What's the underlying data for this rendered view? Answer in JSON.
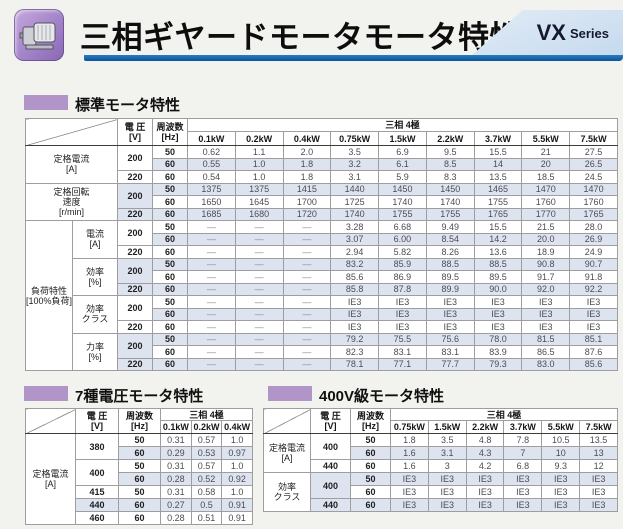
{
  "header": {
    "title": "三相ギヤードモータモータ特性",
    "series": {
      "main": "VX",
      "sub": "Series"
    }
  },
  "colors": {
    "accent_purple": "#b295c8",
    "icon_purple": "#a283c9",
    "underline_blue": "#0b539a",
    "series_badge_bg": "#cfe2f2",
    "alt_row_blue": "#dde4f0",
    "table_border": "#9e9e9e"
  },
  "common_headers": {
    "voltage": "電 圧",
    "voltage_unit": "[V]",
    "frequency": "周波数",
    "frequency_unit": "[Hz]",
    "phase": "三相 4極",
    "dash": "—"
  },
  "standard_section": {
    "title": "標準モータ特性",
    "table": {
      "power_columns": [
        "0.1kW",
        "0.2kW",
        "0.4kW",
        "0.75kW",
        "1.5kW",
        "2.2kW",
        "3.7kW",
        "5.5kW",
        "7.5kW"
      ],
      "groups": [
        {
          "label_lines": [
            "定格電流",
            "[A]"
          ],
          "rows": [
            {
              "voltage": "200",
              "vspan": 2,
              "freq": "50",
              "values": [
                "0.62",
                "1.1",
                "2.0",
                "3.5",
                "6.9",
                "9.5",
                "15.5",
                "21",
                "27.5"
              ]
            },
            {
              "freq": "60",
              "values": [
                "0.55",
                "1.0",
                "1.8",
                "3.2",
                "6.1",
                "8.5",
                "14",
                "20",
                "26.5"
              ]
            },
            {
              "voltage": "220",
              "vspan": 1,
              "freq": "60",
              "values": [
                "0.54",
                "1.0",
                "1.8",
                "3.1",
                "5.9",
                "8.3",
                "13.5",
                "18.5",
                "24.5"
              ]
            }
          ]
        },
        {
          "label_lines": [
            "定格回転",
            "速度",
            "[r/min]"
          ],
          "rows": [
            {
              "voltage": "200",
              "vspan": 2,
              "freq": "50",
              "values": [
                "1375",
                "1375",
                "1415",
                "1440",
                "1450",
                "1450",
                "1465",
                "1470",
                "1470"
              ]
            },
            {
              "freq": "60",
              "values": [
                "1650",
                "1645",
                "1700",
                "1725",
                "1740",
                "1740",
                "1755",
                "1760",
                "1760"
              ]
            },
            {
              "voltage": "220",
              "vspan": 1,
              "freq": "60",
              "values": [
                "1685",
                "1680",
                "1720",
                "1740",
                "1755",
                "1755",
                "1765",
                "1770",
                "1765"
              ]
            }
          ]
        },
        {
          "outer_label_lines": [
            "負荷特性",
            "[100%負荷]"
          ],
          "sub_groups": [
            {
              "label_lines": [
                "電流",
                "[A]"
              ],
              "rows": [
                {
                  "voltage": "200",
                  "vspan": 2,
                  "freq": "50",
                  "values": [
                    "—",
                    "—",
                    "—",
                    "3.28",
                    "6.68",
                    "9.49",
                    "15.5",
                    "21.5",
                    "28.0"
                  ]
                },
                {
                  "freq": "60",
                  "values": [
                    "—",
                    "—",
                    "—",
                    "3.07",
                    "6.00",
                    "8.54",
                    "14.2",
                    "20.0",
                    "26.9"
                  ]
                },
                {
                  "voltage": "220",
                  "vspan": 1,
                  "freq": "60",
                  "values": [
                    "—",
                    "—",
                    "—",
                    "2.94",
                    "5.82",
                    "8.26",
                    "13.6",
                    "18.9",
                    "24.9"
                  ]
                }
              ]
            },
            {
              "label_lines": [
                "効率",
                "[%]"
              ],
              "rows": [
                {
                  "voltage": "200",
                  "vspan": 2,
                  "freq": "50",
                  "values": [
                    "—",
                    "—",
                    "—",
                    "83.2",
                    "85.9",
                    "88.5",
                    "88.5",
                    "90.8",
                    "90.7"
                  ]
                },
                {
                  "freq": "60",
                  "values": [
                    "—",
                    "—",
                    "—",
                    "85.6",
                    "86.9",
                    "89.5",
                    "89.5",
                    "91.7",
                    "91.8"
                  ]
                },
                {
                  "voltage": "220",
                  "vspan": 1,
                  "freq": "60",
                  "values": [
                    "—",
                    "—",
                    "—",
                    "85.8",
                    "87.8",
                    "89.9",
                    "90.0",
                    "92.0",
                    "92.2"
                  ]
                }
              ]
            },
            {
              "label_lines": [
                "効率",
                "クラス"
              ],
              "rows": [
                {
                  "voltage": "200",
                  "vspan": 2,
                  "freq": "50",
                  "values": [
                    "—",
                    "—",
                    "—",
                    "IE3",
                    "IE3",
                    "IE3",
                    "IE3",
                    "IE3",
                    "IE3"
                  ]
                },
                {
                  "freq": "60",
                  "values": [
                    "—",
                    "—",
                    "—",
                    "IE3",
                    "IE3",
                    "IE3",
                    "IE3",
                    "IE3",
                    "IE3"
                  ]
                },
                {
                  "voltage": "220",
                  "vspan": 1,
                  "freq": "60",
                  "values": [
                    "—",
                    "—",
                    "—",
                    "IE3",
                    "IE3",
                    "IE3",
                    "IE3",
                    "IE3",
                    "IE3"
                  ]
                }
              ]
            },
            {
              "label_lines": [
                "力率",
                "[%]"
              ],
              "rows": [
                {
                  "voltage": "200",
                  "vspan": 2,
                  "freq": "50",
                  "values": [
                    "—",
                    "—",
                    "—",
                    "79.2",
                    "75.5",
                    "75.6",
                    "78.0",
                    "81.5",
                    "85.1"
                  ]
                },
                {
                  "freq": "60",
                  "values": [
                    "—",
                    "—",
                    "—",
                    "82.3",
                    "83.1",
                    "83.1",
                    "83.9",
                    "86.5",
                    "87.6"
                  ]
                },
                {
                  "voltage": "220",
                  "vspan": 1,
                  "freq": "60",
                  "values": [
                    "—",
                    "—",
                    "—",
                    "78.1",
                    "77.1",
                    "77.7",
                    "79.3",
                    "83.0",
                    "85.6"
                  ]
                }
              ]
            }
          ]
        }
      ]
    }
  },
  "seven_voltage_section": {
    "title": "7種電圧モータ特性",
    "table": {
      "power_columns": [
        "0.1kW",
        "0.2kW",
        "0.4kW"
      ],
      "groups": [
        {
          "label_lines": [
            "定格電流",
            "[A]"
          ],
          "rows": [
            {
              "voltage": "380",
              "vspan": 2,
              "freq": "50",
              "values": [
                "0.31",
                "0.57",
                "1.0"
              ]
            },
            {
              "freq": "60",
              "values": [
                "0.29",
                "0.53",
                "0.97"
              ]
            },
            {
              "voltage": "400",
              "vspan": 2,
              "freq": "50",
              "values": [
                "0.31",
                "0.57",
                "1.0"
              ]
            },
            {
              "freq": "60",
              "values": [
                "0.28",
                "0.52",
                "0.92"
              ]
            },
            {
              "voltage": "415",
              "vspan": 1,
              "freq": "50",
              "values": [
                "0.31",
                "0.58",
                "1.0"
              ]
            },
            {
              "voltage": "440",
              "vspan": 1,
              "freq": "60",
              "values": [
                "0.27",
                "0.5",
                "0.91"
              ]
            },
            {
              "voltage": "460",
              "vspan": 1,
              "freq": "60",
              "values": [
                "0.28",
                "0.51",
                "0.91"
              ]
            }
          ]
        }
      ]
    }
  },
  "v400_section": {
    "title": "400V級モータ特性",
    "table": {
      "power_columns": [
        "0.75kW",
        "1.5kW",
        "2.2kW",
        "3.7kW",
        "5.5kW",
        "7.5kW"
      ],
      "groups": [
        {
          "label_lines": [
            "定格電流",
            "[A]"
          ],
          "rows": [
            {
              "voltage": "400",
              "vspan": 2,
              "freq": "50",
              "values": [
                "1.8",
                "3.5",
                "4.8",
                "7.8",
                "10.5",
                "13.5"
              ]
            },
            {
              "freq": "60",
              "values": [
                "1.6",
                "3.1",
                "4.3",
                "7",
                "10",
                "13"
              ]
            },
            {
              "voltage": "440",
              "vspan": 1,
              "freq": "60",
              "values": [
                "1.6",
                "3",
                "4.2",
                "6.8",
                "9.3",
                "12"
              ]
            }
          ]
        },
        {
          "label_lines": [
            "効率",
            "クラス"
          ],
          "rows": [
            {
              "voltage": "400",
              "vspan": 2,
              "freq": "50",
              "values": [
                "IE3",
                "IE3",
                "IE3",
                "IE3",
                "IE3",
                "IE3"
              ]
            },
            {
              "freq": "60",
              "values": [
                "IE3",
                "IE3",
                "IE3",
                "IE3",
                "IE3",
                "IE3"
              ]
            },
            {
              "voltage": "440",
              "vspan": 1,
              "freq": "60",
              "values": [
                "IE3",
                "IE3",
                "IE3",
                "IE3",
                "IE3",
                "IE3"
              ]
            }
          ]
        }
      ]
    }
  }
}
